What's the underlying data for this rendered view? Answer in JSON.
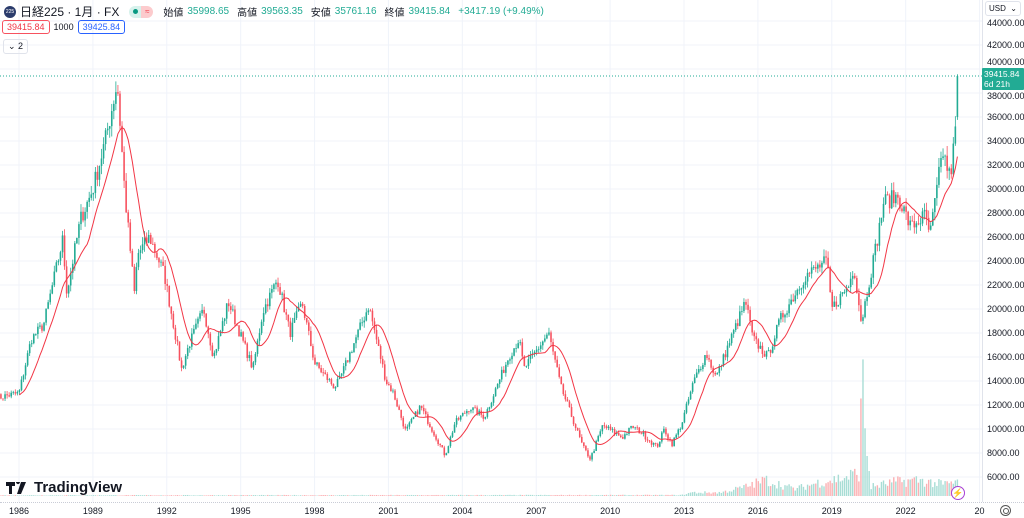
{
  "header": {
    "symbol_icon": "225",
    "title": "日経225 · 1月 · FX",
    "open_label": "始値",
    "open": "35998.65",
    "high_label": "高値",
    "high": "39563.35",
    "low_label": "安値",
    "low": "35761.16",
    "close_label": "終値",
    "close": "39415.84",
    "change": "+3417.19 (+9.49%)",
    "sell_price": "39415.84",
    "spread": "1000",
    "buy_price": "39425.84",
    "collapsed_indicators": "2"
  },
  "currency": "USD",
  "last_price_label": {
    "price": "39415.84",
    "countdown": "6d 21h"
  },
  "watermark": "TradingView",
  "colors": {
    "up": "#22ab94",
    "down": "#f7525f",
    "ma": "#f23645",
    "volume_up": "#a8ddd5",
    "volume_down": "#fbb0b3",
    "grid": "#f0f3fa"
  },
  "chart_data": {
    "type": "candlestick",
    "interval": "monthly",
    "title": "日経225 · 1月 · FX",
    "last_bar": {
      "open": 35998.65,
      "high": 39563.35,
      "low": 35761.16,
      "close": 39415.84
    },
    "moving_average_period": 12,
    "y_ticks": [
      "6000.00",
      "8000.00",
      "10000.00",
      "12000.00",
      "14000.00",
      "16000.00",
      "18000.00",
      "20000.00",
      "22000.00",
      "24000.00",
      "26000.00",
      "28000.00",
      "30000.00",
      "32000.00",
      "34000.00",
      "36000.00",
      "38000.00",
      "40000.00",
      "42000.00",
      "44000.00"
    ],
    "ylim": [
      6000,
      44000
    ],
    "x_ticks": [
      "1986",
      "1989",
      "1992",
      "1995",
      "1998",
      "2001",
      "2004",
      "2007",
      "2010",
      "2013",
      "2016",
      "2019",
      "2022",
      "20"
    ],
    "close_anchors": [
      [
        1985.1,
        12600
      ],
      [
        1986.0,
        13000
      ],
      [
        1986.5,
        17500
      ],
      [
        1987.0,
        18700
      ],
      [
        1987.8,
        26000
      ],
      [
        1987.9,
        21500
      ],
      [
        1988.0,
        22000
      ],
      [
        1988.5,
        27500
      ],
      [
        1989.0,
        30000
      ],
      [
        1989.5,
        34000
      ],
      [
        1989.99,
        38900
      ],
      [
        1990.3,
        29500
      ],
      [
        1990.7,
        21000
      ],
      [
        1990.8,
        24500
      ],
      [
        1991.3,
        26000
      ],
      [
        1991.9,
        22900
      ],
      [
        1992.6,
        15000
      ],
      [
        1992.9,
        17000
      ],
      [
        1993.5,
        20000
      ],
      [
        1993.9,
        16000
      ],
      [
        1994.5,
        20600
      ],
      [
        1995.5,
        15000
      ],
      [
        1995.9,
        19800
      ],
      [
        1996.5,
        22500
      ],
      [
        1997.0,
        18000
      ],
      [
        1997.5,
        20500
      ],
      [
        1998.0,
        15500
      ],
      [
        1998.8,
        13500
      ],
      [
        1999.0,
        14000
      ],
      [
        2000.2,
        20300
      ],
      [
        2000.9,
        14000
      ],
      [
        2001.2,
        13000
      ],
      [
        2001.7,
        9800
      ],
      [
        2002.3,
        11900
      ],
      [
        2003.3,
        7800
      ],
      [
        2003.7,
        10500
      ],
      [
        2004.3,
        11800
      ],
      [
        2004.9,
        11000
      ],
      [
        2005.9,
        16100
      ],
      [
        2006.3,
        17500
      ],
      [
        2006.5,
        15000
      ],
      [
        2007.5,
        18000
      ],
      [
        2008.0,
        13500
      ],
      [
        2008.9,
        8500
      ],
      [
        2009.2,
        7500
      ],
      [
        2009.7,
        10300
      ],
      [
        2010.5,
        9300
      ],
      [
        2010.9,
        10200
      ],
      [
        2011.2,
        9800
      ],
      [
        2011.9,
        8500
      ],
      [
        2012.2,
        10000
      ],
      [
        2012.5,
        8700
      ],
      [
        2012.9,
        10400
      ],
      [
        2013.4,
        14000
      ],
      [
        2013.9,
        16300
      ],
      [
        2014.3,
        14300
      ],
      [
        2014.9,
        17500
      ],
      [
        2015.5,
        20600
      ],
      [
        2015.8,
        17500
      ],
      [
        2016.4,
        16000
      ],
      [
        2016.9,
        19100
      ],
      [
        2017.9,
        22700
      ],
      [
        2018.8,
        24000
      ],
      [
        2018.99,
        20000
      ],
      [
        2019.7,
        22000
      ],
      [
        2019.9,
        23600
      ],
      [
        2020.2,
        18900
      ],
      [
        2020.9,
        26400
      ],
      [
        2021.1,
        28900
      ],
      [
        2021.7,
        29400
      ],
      [
        2022.2,
        26800
      ],
      [
        2022.8,
        27800
      ],
      [
        2022.99,
        26100
      ],
      [
        2023.5,
        33200
      ],
      [
        2023.8,
        30900
      ],
      [
        2023.95,
        33500
      ],
      [
        2024.08,
        36300
      ],
      [
        2024.15,
        39415.84
      ]
    ],
    "volume_anchors": [
      [
        1985.1,
        0.3
      ],
      [
        2012.9,
        0.4
      ],
      [
        2013.3,
        1.5
      ],
      [
        2014.5,
        1.5
      ],
      [
        2015.5,
        4
      ],
      [
        2016.3,
        7
      ],
      [
        2017.5,
        3
      ],
      [
        2018.5,
        6
      ],
      [
        2019.5,
        8
      ],
      [
        2020.1,
        10
      ],
      [
        2020.25,
        52
      ],
      [
        2020.4,
        22
      ],
      [
        2020.6,
        4
      ],
      [
        2021.5,
        6
      ],
      [
        2022.5,
        7
      ],
      [
        2023.5,
        5
      ],
      [
        2024.15,
        6
      ]
    ]
  }
}
